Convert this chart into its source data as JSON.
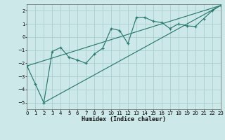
{
  "xlabel": "Humidex (Indice chaleur)",
  "bg_color": "#cde8e8",
  "grid_color": "#aacfcf",
  "line_color": "#2a7a6e",
  "xlim": [
    0,
    23
  ],
  "ylim": [
    -5.5,
    2.5
  ],
  "xticks": [
    0,
    1,
    2,
    3,
    4,
    5,
    6,
    7,
    8,
    9,
    10,
    11,
    12,
    13,
    14,
    15,
    16,
    17,
    18,
    19,
    20,
    21,
    22,
    23
  ],
  "yticks": [
    -5,
    -4,
    -3,
    -2,
    -1,
    0,
    1,
    2
  ],
  "zigzag_x": [
    0,
    1,
    2,
    3,
    4,
    5,
    6,
    7,
    8,
    9,
    10,
    11,
    12,
    13,
    14,
    15,
    16,
    17,
    18,
    19,
    20,
    21,
    22,
    23
  ],
  "zigzag_y": [
    -2.2,
    -3.6,
    -5.0,
    -1.1,
    -0.8,
    -1.55,
    -1.75,
    -2.0,
    -1.3,
    -0.85,
    0.65,
    0.5,
    -0.5,
    1.5,
    1.5,
    1.2,
    1.1,
    0.65,
    1.0,
    0.85,
    0.8,
    1.4,
    2.0,
    2.4
  ],
  "trend1_x": [
    0,
    23
  ],
  "trend1_y": [
    -2.2,
    2.4
  ],
  "trend2_x": [
    2,
    23
  ],
  "trend2_y": [
    -5.0,
    2.4
  ]
}
